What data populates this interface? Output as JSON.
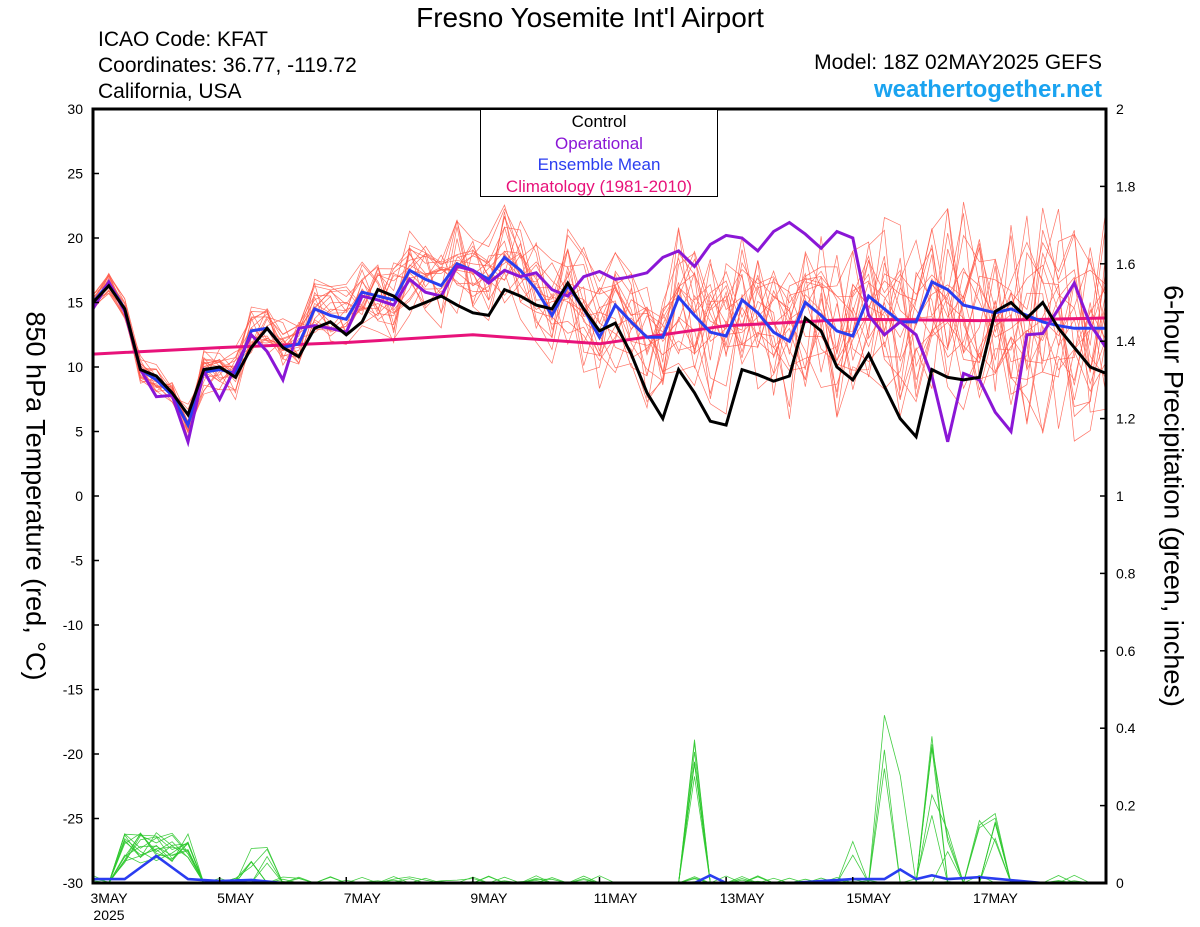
{
  "header": {
    "title": "Fresno Yosemite Int'l Airport",
    "icao": "ICAO Code: KFAT",
    "coords": "Coordinates: 36.77, -119.72",
    "region": "California, USA",
    "model": "Model: 18Z 02MAY2025 GEFS",
    "site": "weathertogether.net"
  },
  "chart_data": {
    "type": "line",
    "ylabel_left": "850 hPa Temperature (red, °C)",
    "ylabel_right": "6-hour Precipitation (green, inches)",
    "ylim_left": [
      -30,
      30
    ],
    "ylim_right": [
      0,
      2
    ],
    "yticks_left": [
      "30",
      "25",
      "20",
      "15",
      "10",
      "5",
      "0",
      "-5",
      "-10",
      "-15",
      "-20",
      "-25",
      "-30"
    ],
    "yticks_right": [
      "2",
      "1.8",
      "1.6",
      "1.4",
      "1.2",
      "1",
      "0.8",
      "0.6",
      "0.4",
      "0.2",
      "0"
    ],
    "xlim_days": [
      0,
      16
    ],
    "xtick_labels": [
      "3MAY",
      "5MAY",
      "7MAY",
      "9MAY",
      "11MAY",
      "13MAY",
      "15MAY",
      "17MAY"
    ],
    "xtick_days": [
      0,
      2,
      4,
      6,
      8,
      10,
      12,
      14
    ],
    "x_year_label": "2025",
    "legend": [
      {
        "label": "Control",
        "color": "#000000"
      },
      {
        "label": "Operational",
        "color": "#8a16d6"
      },
      {
        "label": "Ensemble Mean",
        "color": "#2a3df0"
      },
      {
        "label": "Climatology (1981-2010)",
        "color": "#e8127a"
      }
    ],
    "colors": {
      "members": "#ff5a4a",
      "precip": "#2ec82e",
      "control": "#000000",
      "operational": "#8a16d6",
      "mean": "#2a3df0",
      "climatology": "#e8127a"
    },
    "climatology": {
      "x": [
        0,
        2,
        4,
        6,
        8,
        10,
        12,
        14,
        16
      ],
      "y": [
        11.0,
        11.5,
        11.9,
        12.5,
        11.8,
        13.2,
        13.7,
        13.6,
        13.8
      ]
    },
    "control": {
      "x": [
        0,
        0.25,
        0.5,
        0.75,
        1.0,
        1.25,
        1.5,
        1.75,
        2.0,
        2.25,
        2.5,
        2.75,
        3.0,
        3.25,
        3.5,
        3.75,
        4.0,
        4.25,
        4.5,
        4.75,
        5.0,
        5.25,
        5.5,
        5.75,
        6.0,
        6.25,
        6.5,
        6.75,
        7.0,
        7.25,
        7.5,
        7.75,
        8.0,
        8.25,
        8.5,
        8.75,
        9.0,
        9.25,
        9.5,
        9.75,
        10.0,
        10.25,
        10.5,
        10.75,
        11.0,
        11.25,
        11.5,
        11.75,
        12.0,
        12.25,
        12.5,
        12.75,
        13.0,
        13.25,
        13.5,
        13.75,
        14.0,
        14.25,
        14.5,
        14.75,
        15.0,
        15.25,
        15.5,
        15.75,
        16.0
      ],
      "y": [
        15.0,
        16.3,
        14.5,
        9.8,
        9.3,
        8.0,
        6.3,
        9.8,
        10.0,
        9.2,
        11.5,
        13.0,
        11.5,
        10.8,
        13.0,
        13.5,
        12.5,
        13.5,
        16.0,
        15.5,
        14.5,
        15.0,
        15.5,
        14.8,
        14.2,
        14.0,
        16.0,
        15.5,
        14.8,
        14.5,
        16.5,
        14.5,
        12.8,
        13.4,
        11.0,
        8.0,
        6.0,
        9.8,
        8.0,
        5.8,
        5.5,
        9.8,
        9.4,
        8.9,
        9.3,
        13.8,
        12.8,
        10.0,
        9.0,
        11.0,
        8.5,
        6.0,
        4.6,
        9.8,
        9.2,
        9.0,
        9.2,
        14.3,
        15.0,
        13.8,
        15.0,
        13.0,
        11.5,
        10.0,
        9.5
      ]
    },
    "operational": {
      "x": [
        0,
        0.25,
        0.5,
        0.75,
        1.0,
        1.25,
        1.5,
        1.75,
        2.0,
        2.25,
        2.5,
        2.75,
        3.0,
        3.25,
        3.5,
        3.75,
        4.0,
        4.25,
        4.5,
        4.75,
        5.0,
        5.25,
        5.5,
        5.75,
        6.0,
        6.25,
        6.5,
        6.75,
        7.0,
        7.25,
        7.5,
        7.75,
        8.0,
        8.25,
        8.5,
        8.75,
        9.0,
        9.25,
        9.5,
        9.75,
        10.0,
        10.25,
        10.5,
        10.75,
        11.0,
        11.25,
        11.5,
        11.75,
        12.0,
        12.25,
        12.5,
        12.75,
        13.0,
        13.25,
        13.5,
        13.75,
        14.0,
        14.25,
        14.5,
        14.75,
        15.0,
        15.25,
        15.5,
        15.75,
        16.0
      ],
      "y": [
        14.5,
        16.6,
        14.3,
        9.8,
        7.7,
        7.8,
        4.2,
        9.7,
        7.5,
        10.0,
        12.5,
        11.2,
        9.0,
        13.0,
        13.2,
        13.0,
        12.7,
        15.5,
        15.2,
        14.8,
        16.8,
        15.8,
        15.5,
        17.8,
        17.5,
        16.5,
        17.5,
        17.0,
        17.3,
        16.0,
        15.5,
        17.0,
        17.4,
        16.8,
        17.0,
        17.3,
        18.5,
        19.0,
        17.8,
        19.5,
        20.2,
        20.0,
        19.0,
        20.5,
        21.2,
        20.3,
        19.2,
        20.5,
        20.0,
        14.0,
        12.5,
        13.5,
        12.5,
        9.3,
        4.2,
        9.5,
        9.0,
        6.5,
        5.0,
        12.5,
        12.6,
        14.5,
        16.5,
        13.3,
        11.5
      ]
    },
    "mean": {
      "x": [
        0,
        0.25,
        0.5,
        0.75,
        1.0,
        1.25,
        1.5,
        1.75,
        2.0,
        2.25,
        2.5,
        2.75,
        3.0,
        3.25,
        3.5,
        3.75,
        4.0,
        4.25,
        4.5,
        4.75,
        5.0,
        5.25,
        5.5,
        5.75,
        6.0,
        6.25,
        6.5,
        6.75,
        7.0,
        7.25,
        7.5,
        7.75,
        8.0,
        8.25,
        8.5,
        8.75,
        9.0,
        9.25,
        9.5,
        9.75,
        10.0,
        10.25,
        10.5,
        10.75,
        11.0,
        11.25,
        11.5,
        11.75,
        12.0,
        12.25,
        12.5,
        12.75,
        13.0,
        13.25,
        13.5,
        13.75,
        14.0,
        14.25,
        14.5,
        14.75,
        15.0,
        15.25,
        15.5,
        15.75,
        16.0
      ],
      "y": [
        15.0,
        16.5,
        14.5,
        9.8,
        9.0,
        7.8,
        5.5,
        9.6,
        9.8,
        9.5,
        12.8,
        13.0,
        11.5,
        11.8,
        14.5,
        14.0,
        13.7,
        15.8,
        15.5,
        15.2,
        17.5,
        16.8,
        16.3,
        18.0,
        17.5,
        16.8,
        18.5,
        17.5,
        16.0,
        14.0,
        16.3,
        14.5,
        12.3,
        14.8,
        13.5,
        12.3,
        12.3,
        15.4,
        14.0,
        12.7,
        12.4,
        15.2,
        14.2,
        12.7,
        12.0,
        15.0,
        14.0,
        12.8,
        12.4,
        15.5,
        14.5,
        13.5,
        13.5,
        16.6,
        16.0,
        14.8,
        14.5,
        14.2,
        14.5,
        14.0,
        13.5,
        13.2,
        13.0,
        13.0,
        13.0
      ]
    },
    "precip_mean": {
      "x": [
        0,
        0.5,
        0.75,
        1.0,
        1.25,
        1.5,
        2.0,
        2.5,
        3.0,
        9.5,
        9.75,
        10.0,
        11.0,
        11.5,
        12.0,
        12.5,
        12.75,
        13.0,
        13.25,
        13.5,
        14.0,
        15.0,
        16.0
      ],
      "y": [
        0.01,
        0.01,
        0.04,
        0.07,
        0.04,
        0.01,
        0.005,
        0.008,
        0.0,
        0.0,
        0.02,
        0.0,
        0.0,
        0.005,
        0.01,
        0.01,
        0.035,
        0.01,
        0.02,
        0.01,
        0.015,
        0.0,
        0.0
      ]
    }
  }
}
